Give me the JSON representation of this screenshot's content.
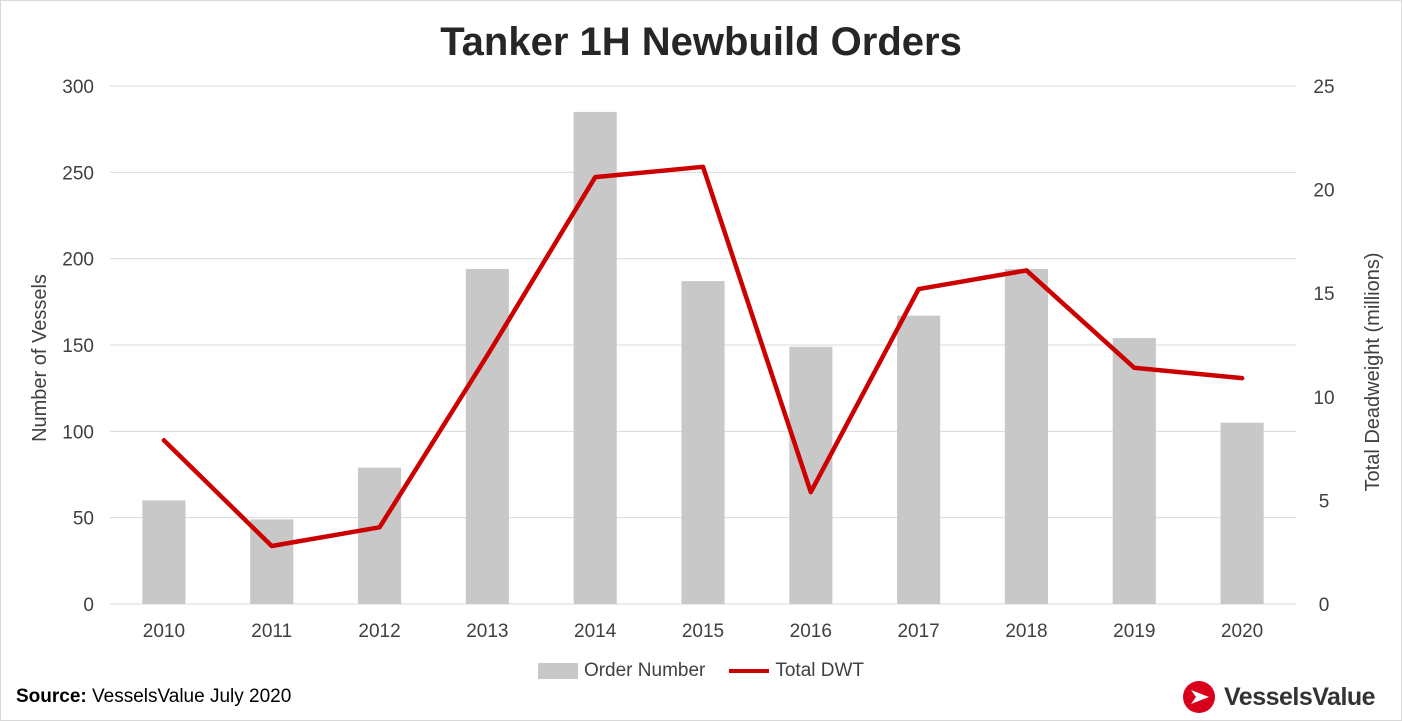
{
  "chart_data": {
    "type": "bar",
    "title": "Tanker 1H Newbuild Orders",
    "categories": [
      "2010",
      "2011",
      "2012",
      "2013",
      "2014",
      "2015",
      "2016",
      "2017",
      "2018",
      "2019",
      "2020"
    ],
    "series": [
      {
        "name": "Order Number",
        "type": "bar",
        "axis": "left",
        "color": "#c8c8c8",
        "values": [
          60,
          49,
          79,
          194,
          285,
          187,
          149,
          167,
          194,
          154,
          105
        ]
      },
      {
        "name": "Total DWT",
        "type": "line",
        "axis": "right",
        "color": "#cc0000",
        "values": [
          7.9,
          2.8,
          3.7,
          12.0,
          20.6,
          21.1,
          5.4,
          15.2,
          16.1,
          11.4,
          10.9
        ]
      }
    ],
    "ylabel": "Number of Vessels",
    "y2label": "Total Deadweight (millions)",
    "ylim": [
      0,
      300
    ],
    "y2lim": [
      0,
      25
    ],
    "yticks": [
      0,
      50,
      100,
      150,
      200,
      250,
      300
    ],
    "y2ticks": [
      0,
      5,
      10,
      15,
      20,
      25
    ],
    "grid": true,
    "legend_position": "bottom"
  },
  "footer": {
    "source_label": "Source:",
    "source_text": "VesselsValue July 2020",
    "logo_text": "VesselsValue"
  }
}
